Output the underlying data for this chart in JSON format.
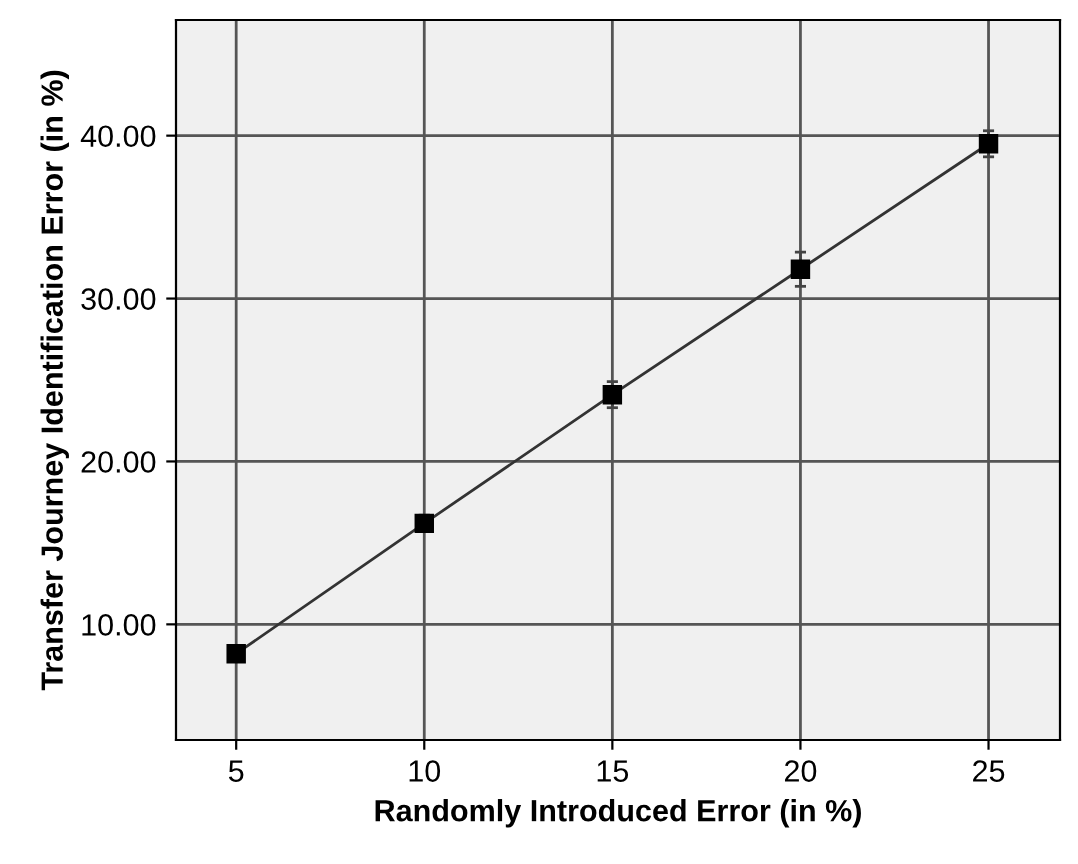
{
  "chart_data": {
    "type": "line",
    "xlabel": "Randomly Introduced Error (in %)",
    "ylabel": "Transfer Journey Identification Error (in %)",
    "x": [
      5,
      10,
      15,
      20,
      25
    ],
    "series": [
      {
        "color": "#000000",
        "values": [
          8.2,
          16.2,
          24.1,
          31.8,
          39.5
        ],
        "errors": [
          0.4,
          0.5,
          0.8,
          1.05,
          0.8
        ]
      }
    ],
    "xlim": [
      3.4,
      26.9
    ],
    "xticks": [
      5,
      10,
      15,
      20,
      25
    ],
    "ylim": [
      2.9,
      47.1
    ],
    "yticks": [
      {
        "value": 10,
        "label": "10.00"
      },
      {
        "value": 20,
        "label": "20.00"
      },
      {
        "value": 30,
        "label": "30.00"
      },
      {
        "value": 40,
        "label": "40.00"
      }
    ],
    "grid": true,
    "marker": "square",
    "line_style": "solid"
  }
}
